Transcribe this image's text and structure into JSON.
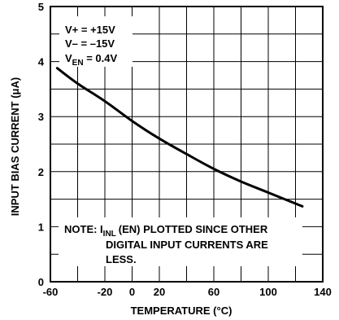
{
  "chart_data": {
    "type": "line",
    "title": "",
    "xlabel": "TEMPERATURE (°C)",
    "ylabel": "INPUT BIAS CURRENT (μA)",
    "xlim": [
      -60,
      140
    ],
    "ylim": [
      0,
      5
    ],
    "x_ticks": [
      -60,
      -20,
      0,
      20,
      60,
      100,
      140
    ],
    "y_ticks": [
      0,
      1,
      2,
      3,
      4,
      5
    ],
    "grid": true,
    "conditions": {
      "vplus": "V+ = +15V",
      "vminus": "V– = –15V",
      "ven_prefix": "V",
      "ven_sub": "EN",
      "ven_suffix": " = 0.4V"
    },
    "note": {
      "prefix": "NOTE: I",
      "sub": "INL",
      "line1_suffix": "(EN) PLOTTED SINCE OTHER",
      "line2": "DIGITAL INPUT CURRENTS ARE",
      "line3": "LESS."
    },
    "series": [
      {
        "x": [
          -55,
          -40,
          -20,
          0,
          20,
          40,
          60,
          80,
          100,
          125
        ],
        "y": [
          3.88,
          3.6,
          3.28,
          2.92,
          2.6,
          2.32,
          2.05,
          1.82,
          1.62,
          1.37
        ]
      }
    ]
  }
}
